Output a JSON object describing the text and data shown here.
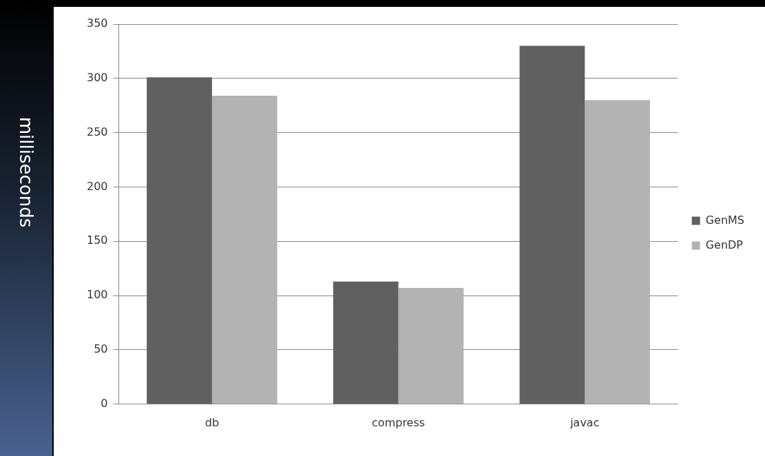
{
  "chart_data": {
    "type": "bar",
    "ylabel": "milliseconds",
    "categories": [
      "db",
      "compress",
      "javac"
    ],
    "series": [
      {
        "name": "GenMS",
        "color": "#606060",
        "values": [
          301,
          113,
          330
        ]
      },
      {
        "name": "GenDP",
        "color": "#b3b3b3",
        "values": [
          284,
          107,
          280
        ]
      }
    ],
    "ylim": [
      0,
      350
    ],
    "yticks": [
      0,
      50,
      100,
      150,
      200,
      250,
      300,
      350
    ],
    "grid": "y",
    "legend": "right"
  }
}
